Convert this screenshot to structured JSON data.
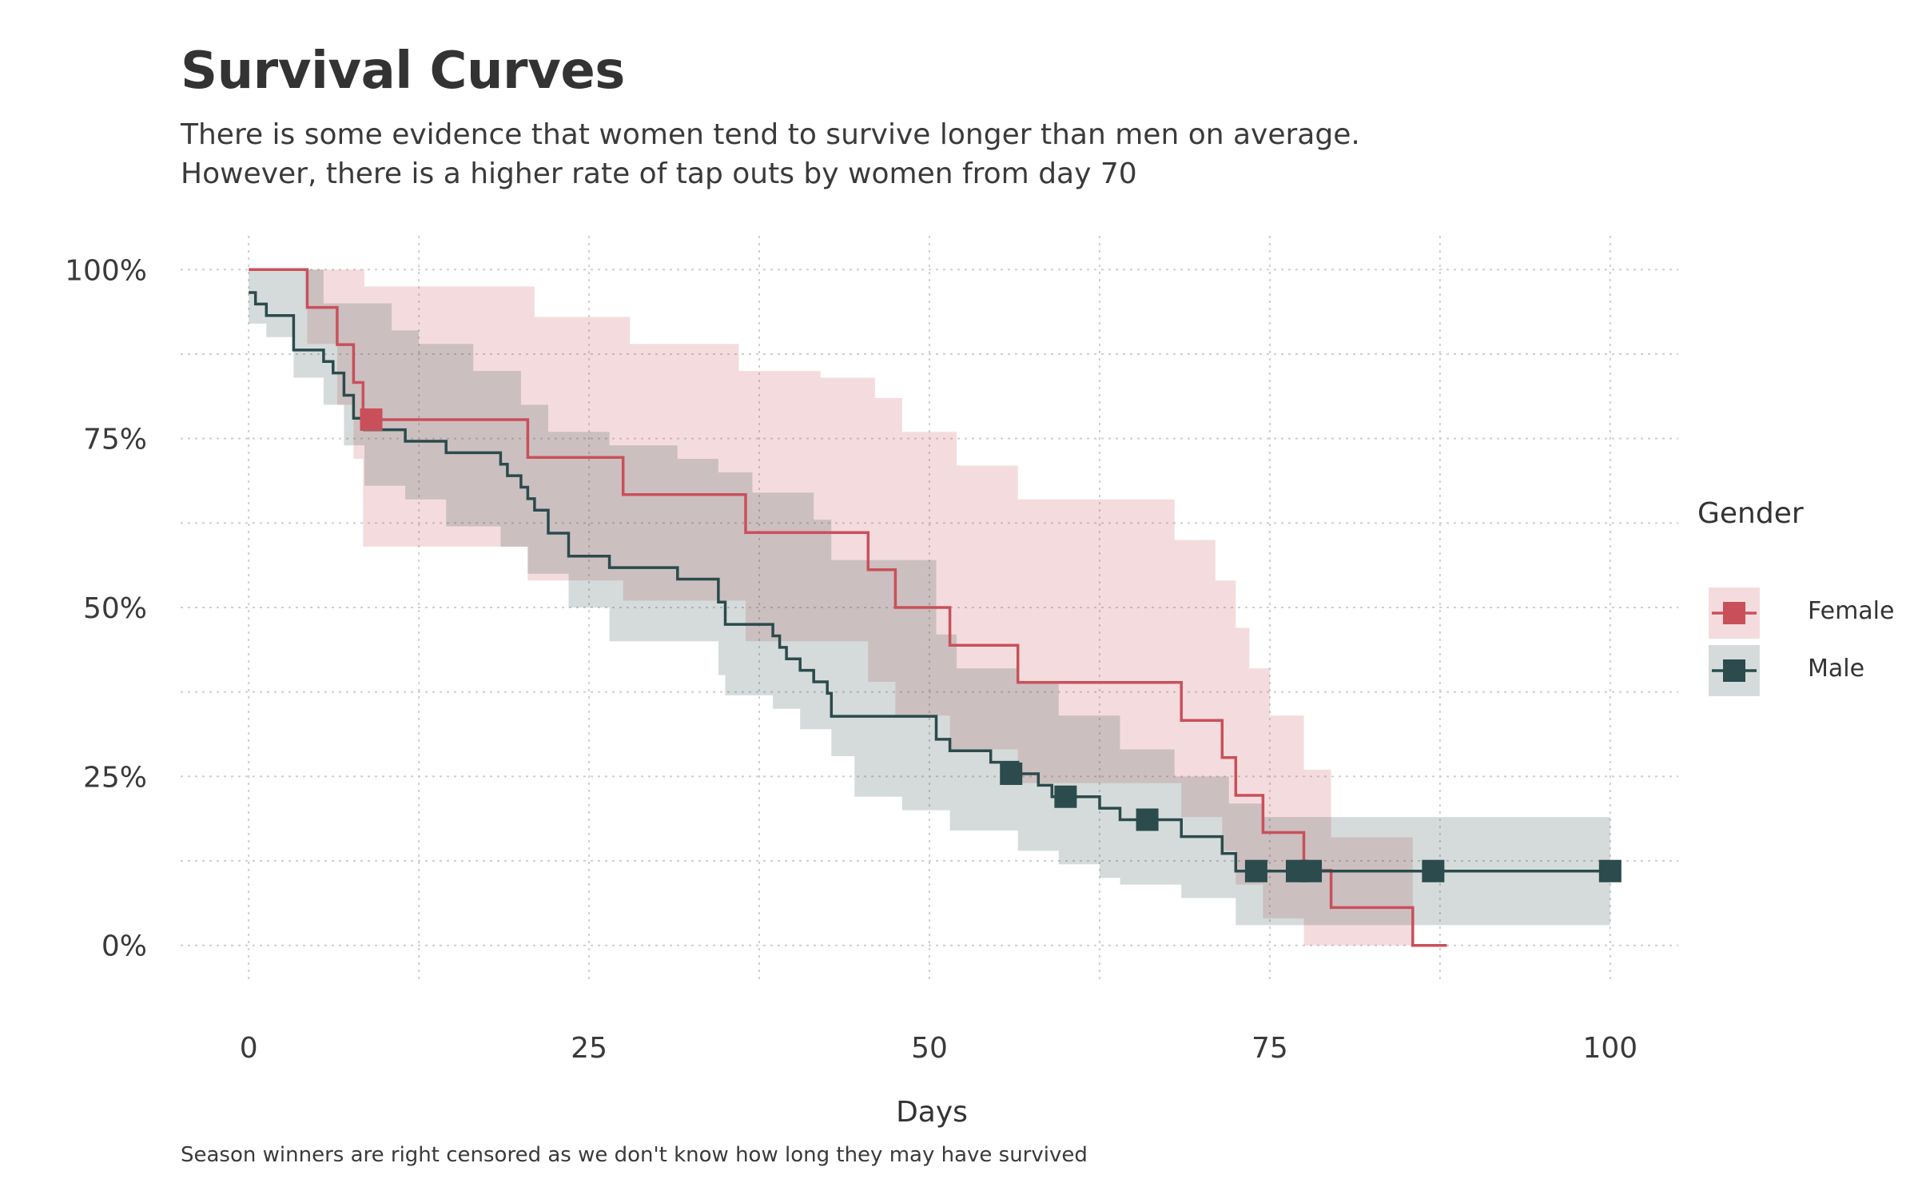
{
  "title": "Survival Curves",
  "subtitle_line1": "There is some evidence that women tend to survive longer than men on average.",
  "subtitle_line2": "However, there is a higher rate of tap outs by women from day 70",
  "caption": "Season winners are right censored as we don't know how long they may have survived",
  "legend": {
    "title": "Gender",
    "items": [
      "Female",
      "Male"
    ]
  },
  "chart_data": {
    "type": "line",
    "subtype": "step",
    "xlabel": "Days",
    "ylabel": "",
    "xlim": [
      -5,
      105
    ],
    "ylim": [
      -0.05,
      1.05
    ],
    "x_ticks": [
      0,
      25,
      50,
      75,
      100
    ],
    "x_tick_labels": [
      "0",
      "25",
      "50",
      "75",
      "100"
    ],
    "y_ticks": [
      0,
      0.25,
      0.5,
      0.75,
      1
    ],
    "y_tick_labels": [
      "0%",
      "25%",
      "50%",
      "75%",
      "100%"
    ],
    "grid": true,
    "legend_position": "right",
    "colors": {
      "Female": "#c9505a",
      "Male": "#2b4b4c"
    },
    "series": [
      {
        "name": "Female",
        "steps": [
          [
            0,
            1.0
          ],
          [
            4.3,
            0.944
          ],
          [
            6.5,
            0.889
          ],
          [
            7.7,
            0.833
          ],
          [
            8.4,
            0.778
          ],
          [
            20.5,
            0.722
          ],
          [
            27.5,
            0.667
          ],
          [
            36.5,
            0.611
          ],
          [
            45.5,
            0.556
          ],
          [
            47.5,
            0.5
          ],
          [
            51.5,
            0.444
          ],
          [
            56.5,
            0.389
          ],
          [
            68.5,
            0.333
          ],
          [
            71.5,
            0.278
          ],
          [
            72.5,
            0.222
          ],
          [
            74.5,
            0.167
          ],
          [
            77.5,
            0.111
          ],
          [
            79.5,
            0.056
          ],
          [
            85.5,
            0.0
          ],
          [
            88,
            0.0
          ]
        ],
        "ci_upper": [
          [
            0,
            1.0
          ],
          [
            8.5,
            0.975
          ],
          [
            21,
            0.93
          ],
          [
            28,
            0.89
          ],
          [
            36,
            0.85
          ],
          [
            42,
            0.84
          ],
          [
            46,
            0.81
          ],
          [
            48,
            0.76
          ],
          [
            52,
            0.71
          ],
          [
            56.5,
            0.66
          ],
          [
            68,
            0.6
          ],
          [
            71,
            0.54
          ],
          [
            72.5,
            0.47
          ],
          [
            73.5,
            0.41
          ],
          [
            75,
            0.34
          ],
          [
            77.5,
            0.26
          ],
          [
            79.5,
            0.16
          ],
          [
            85.5,
            0.16
          ]
        ],
        "ci_lower": [
          [
            0,
            1.0
          ],
          [
            4.3,
            0.89
          ],
          [
            6.5,
            0.8
          ],
          [
            7.7,
            0.72
          ],
          [
            8.4,
            0.59
          ],
          [
            20.5,
            0.54
          ],
          [
            27.5,
            0.51
          ],
          [
            36.5,
            0.45
          ],
          [
            45.5,
            0.39
          ],
          [
            47.5,
            0.34
          ],
          [
            51.5,
            0.29
          ],
          [
            56.5,
            0.24
          ],
          [
            68.5,
            0.19
          ],
          [
            71.5,
            0.14
          ],
          [
            72.5,
            0.09
          ],
          [
            74.5,
            0.04
          ],
          [
            77.5,
            0.0
          ],
          [
            85.5,
            0.0
          ]
        ],
        "censored": [
          {
            "x": 9.0,
            "y": 0.778
          }
        ]
      },
      {
        "name": "Male",
        "steps": [
          [
            0,
            0.966
          ],
          [
            0.5,
            0.949
          ],
          [
            1.3,
            0.932
          ],
          [
            3.3,
            0.881
          ],
          [
            5.5,
            0.864
          ],
          [
            6.2,
            0.847
          ],
          [
            7.0,
            0.814
          ],
          [
            7.7,
            0.78
          ],
          [
            8.5,
            0.763
          ],
          [
            11.5,
            0.746
          ],
          [
            14.5,
            0.729
          ],
          [
            18.5,
            0.712
          ],
          [
            19.0,
            0.695
          ],
          [
            20.0,
            0.678
          ],
          [
            20.5,
            0.661
          ],
          [
            21.0,
            0.644
          ],
          [
            22.0,
            0.61
          ],
          [
            23.5,
            0.576
          ],
          [
            26.5,
            0.559
          ],
          [
            31.5,
            0.542
          ],
          [
            34.5,
            0.508
          ],
          [
            35.0,
            0.475
          ],
          [
            38.5,
            0.458
          ],
          [
            39.0,
            0.441
          ],
          [
            39.5,
            0.424
          ],
          [
            40.5,
            0.407
          ],
          [
            41.5,
            0.39
          ],
          [
            42.5,
            0.373
          ],
          [
            42.8,
            0.339
          ],
          [
            50.5,
            0.305
          ],
          [
            51.5,
            0.288
          ],
          [
            54.5,
            0.271
          ],
          [
            56.5,
            0.254
          ],
          [
            58.0,
            0.237
          ],
          [
            59.0,
            0.22
          ],
          [
            62.5,
            0.203
          ],
          [
            64.0,
            0.186
          ],
          [
            68.5,
            0.161
          ],
          [
            71.5,
            0.136
          ],
          [
            72.5,
            0.11
          ],
          [
            100,
            0.11
          ]
        ],
        "ci_upper": [
          [
            0,
            1.0
          ],
          [
            5.5,
            0.95
          ],
          [
            10.5,
            0.91
          ],
          [
            12.5,
            0.89
          ],
          [
            16.5,
            0.85
          ],
          [
            20,
            0.8
          ],
          [
            22,
            0.76
          ],
          [
            26.5,
            0.74
          ],
          [
            31.5,
            0.72
          ],
          [
            34.5,
            0.7
          ],
          [
            37,
            0.67
          ],
          [
            41.5,
            0.63
          ],
          [
            42.8,
            0.57
          ],
          [
            50.5,
            0.46
          ],
          [
            52,
            0.41
          ],
          [
            56.5,
            0.39
          ],
          [
            59.5,
            0.34
          ],
          [
            64,
            0.29
          ],
          [
            68,
            0.25
          ],
          [
            72,
            0.21
          ],
          [
            74.5,
            0.19
          ],
          [
            100,
            0.19
          ]
        ],
        "ci_lower": [
          [
            0,
            0.92
          ],
          [
            1.3,
            0.9
          ],
          [
            3.3,
            0.84
          ],
          [
            5.5,
            0.8
          ],
          [
            7.0,
            0.74
          ],
          [
            8.5,
            0.68
          ],
          [
            11.5,
            0.66
          ],
          [
            14.5,
            0.62
          ],
          [
            18.5,
            0.59
          ],
          [
            20.5,
            0.55
          ],
          [
            23.5,
            0.5
          ],
          [
            26.5,
            0.45
          ],
          [
            31.5,
            0.45
          ],
          [
            34.5,
            0.4
          ],
          [
            35.0,
            0.37
          ],
          [
            38.5,
            0.35
          ],
          [
            40.5,
            0.32
          ],
          [
            42.8,
            0.28
          ],
          [
            44.5,
            0.22
          ],
          [
            48,
            0.2
          ],
          [
            51.5,
            0.17
          ],
          [
            56.5,
            0.14
          ],
          [
            59.5,
            0.12
          ],
          [
            62.5,
            0.1
          ],
          [
            64,
            0.09
          ],
          [
            68.5,
            0.07
          ],
          [
            72.5,
            0.03
          ],
          [
            74.5,
            0.03
          ],
          [
            100,
            0.03
          ]
        ],
        "censored": [
          {
            "x": 56.0,
            "y": 0.254
          },
          {
            "x": 60.0,
            "y": 0.22
          },
          {
            "x": 66.0,
            "y": 0.186
          },
          {
            "x": 74.0,
            "y": 0.11
          },
          {
            "x": 77.0,
            "y": 0.11
          },
          {
            "x": 78.0,
            "y": 0.11
          },
          {
            "x": 87.0,
            "y": 0.11
          },
          {
            "x": 100.0,
            "y": 0.11
          }
        ]
      }
    ]
  }
}
